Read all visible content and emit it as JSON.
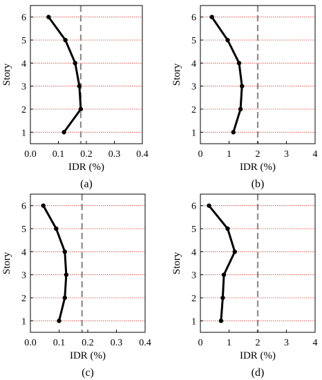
{
  "chart_data": [
    {
      "type": "line",
      "panel": "a",
      "panel_label": "(a)",
      "xlabel": "IDR (%)",
      "ylabel": "Story",
      "xlim": [
        0.0,
        0.4
      ],
      "ylim": [
        0.5,
        6.5
      ],
      "x_ticks": [
        "0.0",
        "0.1",
        "0.2",
        "0.3",
        "0.4"
      ],
      "y_ticks": [
        "1",
        "2",
        "3",
        "4",
        "5",
        "6"
      ],
      "limit_line": 0.18,
      "grid": "horizontal dotted red at each story",
      "series": [
        {
          "story": [
            1,
            2,
            3,
            4,
            5,
            6
          ],
          "idr": [
            0.12,
            0.18,
            0.175,
            0.16,
            0.125,
            0.065
          ]
        }
      ]
    },
    {
      "type": "line",
      "panel": "b",
      "panel_label": "(b)",
      "xlabel": "IDR (%)",
      "ylabel": "Story",
      "xlim": [
        0,
        4
      ],
      "ylim": [
        0.5,
        6.5
      ],
      "x_ticks": [
        "0",
        "1",
        "2",
        "3",
        "4"
      ],
      "y_ticks": [
        "1",
        "2",
        "3",
        "4",
        "5",
        "6"
      ],
      "limit_line": 2,
      "grid": "horizontal dotted red at each story",
      "series": [
        {
          "story": [
            1,
            2,
            3,
            4,
            5,
            6
          ],
          "idr": [
            1.15,
            1.4,
            1.45,
            1.35,
            0.95,
            0.4
          ]
        }
      ]
    },
    {
      "type": "line",
      "panel": "c",
      "panel_label": "(c)",
      "xlabel": "IDR (%)",
      "ylabel": "Story",
      "xlim": [
        0.0,
        0.4
      ],
      "ylim": [
        0.5,
        6.5
      ],
      "x_ticks": [
        "0.0",
        "0.1",
        "0.2",
        "0.3",
        "0.4"
      ],
      "y_ticks": [
        "1",
        "2",
        "3",
        "4",
        "5",
        "6"
      ],
      "limit_line": 0.18,
      "grid": "horizontal dotted red at each story",
      "series": [
        {
          "story": [
            1,
            2,
            3,
            4,
            5,
            6
          ],
          "idr": [
            0.1,
            0.12,
            0.125,
            0.12,
            0.09,
            0.045
          ]
        }
      ]
    },
    {
      "type": "line",
      "panel": "d",
      "panel_label": "(d)",
      "xlabel": "IDR (%)",
      "ylabel": "Story",
      "xlim": [
        0,
        4
      ],
      "ylim": [
        0.5,
        6.5
      ],
      "x_ticks": [
        "0",
        "1",
        "2",
        "3",
        "4"
      ],
      "y_ticks": [
        "1",
        "2",
        "3",
        "4",
        "5",
        "6"
      ],
      "limit_line": 2,
      "grid": "horizontal dotted red at each story",
      "series": [
        {
          "story": [
            1,
            2,
            3,
            4,
            5,
            6
          ],
          "idr": [
            0.72,
            0.78,
            0.82,
            1.2,
            0.95,
            0.3
          ]
        }
      ]
    }
  ],
  "colors": {
    "series_line": "#000000",
    "limit_line": "#8c8c8c",
    "grid": "#c0392b",
    "axis": "#000000"
  }
}
